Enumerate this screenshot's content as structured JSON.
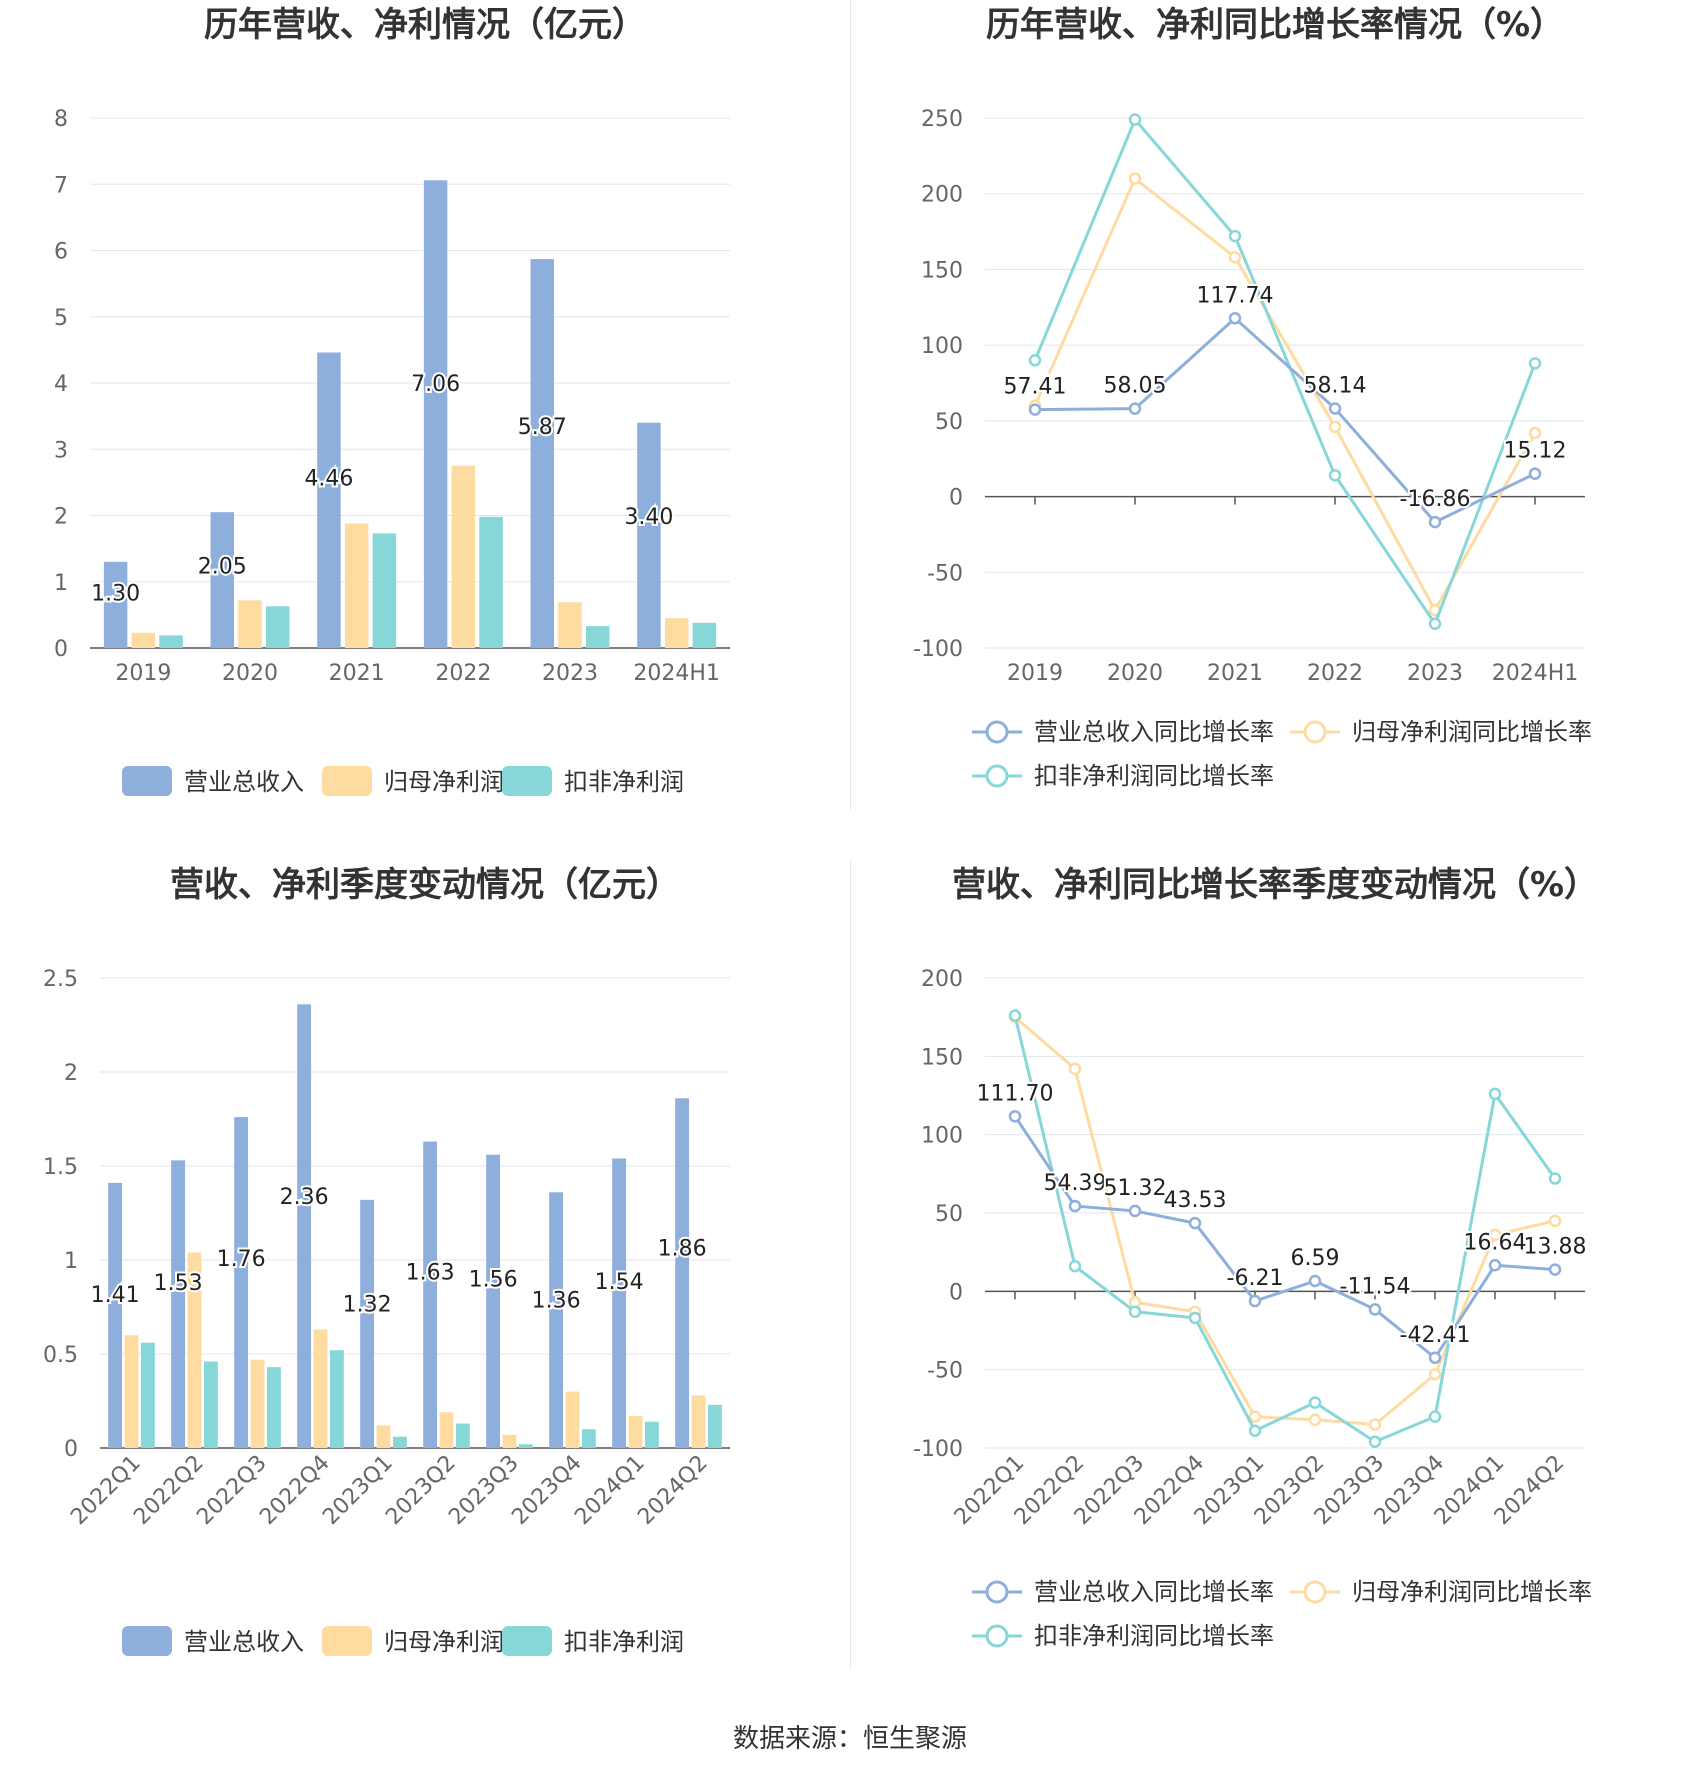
{
  "source": "数据来源：恒生聚源",
  "colors": {
    "revenue": "#8eaedb",
    "net_profit": "#fddba1",
    "deducted": "#87d6d8"
  },
  "chart_data": [
    {
      "type": "bar",
      "title": "历年营收、净利情况（亿元）",
      "categories": [
        "2019",
        "2020",
        "2021",
        "2022",
        "2023",
        "2024H1"
      ],
      "ylim": [
        0,
        8
      ],
      "yticks": [
        0,
        1,
        2,
        3,
        4,
        5,
        6,
        7,
        8
      ],
      "grid": true,
      "legend_position": "bottom",
      "series": [
        {
          "name": "营业总收入",
          "values": [
            1.3,
            2.05,
            4.46,
            7.06,
            5.87,
            3.4
          ],
          "labels": [
            "1.30",
            "2.05",
            "4.46",
            "7.06",
            "5.87",
            "3.40"
          ]
        },
        {
          "name": "归母净利润",
          "values": [
            0.23,
            0.72,
            1.88,
            2.75,
            0.69,
            0.45
          ]
        },
        {
          "name": "扣非净利润",
          "values": [
            0.19,
            0.63,
            1.73,
            1.98,
            0.33,
            0.38
          ]
        }
      ]
    },
    {
      "type": "line",
      "title": "历年营收、净利同比增长率情况（%）",
      "categories": [
        "2019",
        "2020",
        "2021",
        "2022",
        "2023",
        "2024H1"
      ],
      "ylim": [
        -100,
        250
      ],
      "yticks": [
        -100,
        -50,
        0,
        50,
        100,
        150,
        200,
        250
      ],
      "grid": true,
      "legend_position": "bottom",
      "series": [
        {
          "name": "营业总收入同比增长率",
          "values": [
            57.41,
            58.05,
            117.74,
            58.14,
            -16.86,
            15.12
          ],
          "labels": [
            "57.41",
            "58.05",
            "117.74",
            "58.14",
            "-16.86",
            "15.12"
          ]
        },
        {
          "name": "归母净利润同比增长率",
          "values": [
            60,
            210,
            158,
            46,
            -75,
            42
          ]
        },
        {
          "name": "扣非净利润同比增长率",
          "values": [
            90,
            249,
            172,
            14,
            -84,
            88
          ]
        }
      ]
    },
    {
      "type": "bar",
      "title": "营收、净利季度变动情况（亿元）",
      "categories": [
        "2022Q1",
        "2022Q2",
        "2022Q3",
        "2022Q4",
        "2023Q1",
        "2023Q2",
        "2023Q3",
        "2023Q4",
        "2024Q1",
        "2024Q2"
      ],
      "ylim": [
        0,
        2.5
      ],
      "yticks": [
        0,
        0.5,
        1,
        1.5,
        2,
        2.5
      ],
      "grid": true,
      "legend_position": "bottom",
      "series": [
        {
          "name": "营业总收入",
          "values": [
            1.41,
            1.53,
            1.76,
            2.36,
            1.32,
            1.63,
            1.56,
            1.36,
            1.54,
            1.86
          ],
          "labels": [
            "1.41",
            "1.53",
            "1.76",
            "2.36",
            "1.32",
            "1.63",
            "1.56",
            "1.36",
            "1.54",
            "1.86"
          ]
        },
        {
          "name": "归母净利润",
          "values": [
            0.6,
            1.04,
            0.47,
            0.63,
            0.12,
            0.19,
            0.07,
            0.3,
            0.17,
            0.28
          ]
        },
        {
          "name": "扣非净利润",
          "values": [
            0.56,
            0.46,
            0.43,
            0.52,
            0.06,
            0.13,
            0.02,
            0.1,
            0.14,
            0.23
          ]
        }
      ]
    },
    {
      "type": "line",
      "title": "营收、净利同比增长率季度变动情况（%）",
      "categories": [
        "2022Q1",
        "2022Q2",
        "2022Q3",
        "2022Q4",
        "2023Q1",
        "2023Q2",
        "2023Q3",
        "2023Q4",
        "2024Q1",
        "2024Q2"
      ],
      "ylim": [
        -100,
        200
      ],
      "yticks": [
        -100,
        -50,
        0,
        50,
        100,
        150,
        200
      ],
      "grid": true,
      "legend_position": "bottom",
      "series": [
        {
          "name": "营业总收入同比增长率",
          "values": [
            111.7,
            54.39,
            51.32,
            43.53,
            -6.21,
            6.59,
            -11.54,
            -42.41,
            16.64,
            13.88
          ],
          "labels": [
            "111.70",
            "54.39",
            "51.32",
            "43.53",
            "-6.21",
            "6.59",
            "-11.54",
            "-42.41",
            "16.64",
            "13.88"
          ]
        },
        {
          "name": "归母净利润同比增长率",
          "values": [
            175,
            142,
            -7,
            -13,
            -80,
            -82,
            -85,
            -53,
            36,
            45
          ]
        },
        {
          "name": "扣非净利润同比增长率",
          "values": [
            176,
            16,
            -13,
            -17,
            -89,
            -71,
            -96,
            -80,
            126,
            72
          ]
        }
      ]
    }
  ]
}
